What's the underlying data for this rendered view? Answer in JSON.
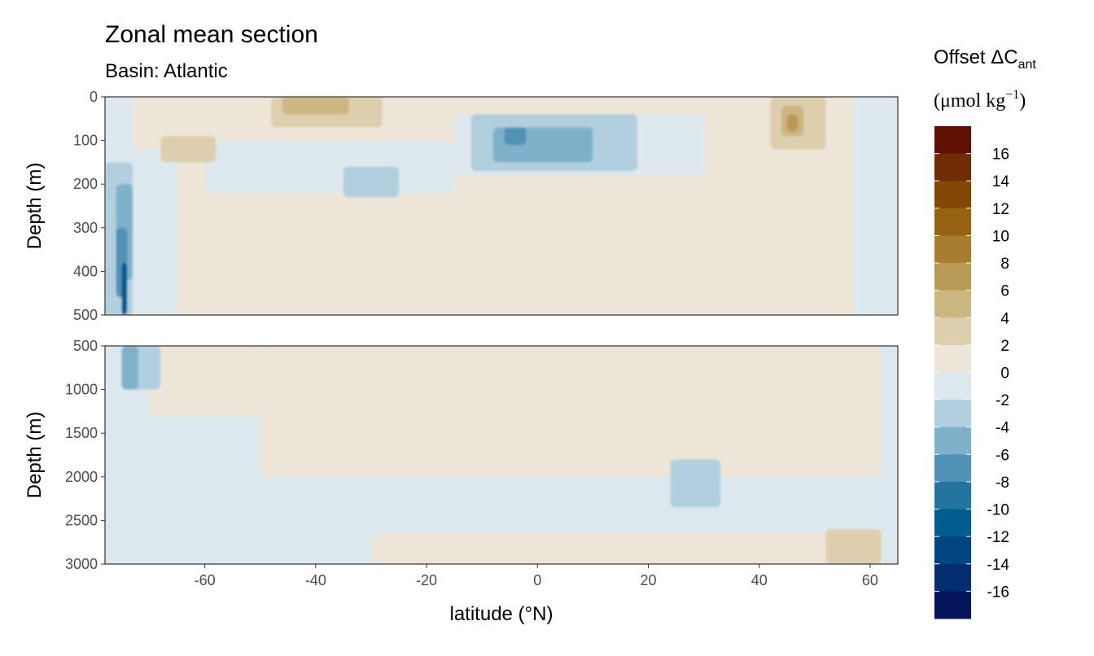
{
  "chart_data": {
    "type": "heatmap",
    "title": "Zonal mean section",
    "subtitle": "Basin: Atlantic",
    "xlabel": "latitude (°N)",
    "ylabel": "Depth (m)",
    "xlim": [
      -78,
      65
    ],
    "x_ticks": [
      -60,
      -40,
      -20,
      0,
      20,
      40,
      60
    ],
    "x_tick_labels": [
      "-60",
      "-40",
      "-20",
      "0",
      "20",
      "40",
      "60"
    ],
    "panels": [
      {
        "name": "upper",
        "ylim": [
          0,
          500
        ],
        "y_ticks": [
          0,
          100,
          200,
          300,
          400,
          500
        ],
        "y_tick_labels": [
          "0",
          "100",
          "200",
          "300",
          "400",
          "500"
        ],
        "background_level": "0 to 2",
        "regions": [
          {
            "level": "-2 to 0",
            "lat": [
              -78,
              -73
            ],
            "depth": [
              0,
              500
            ]
          },
          {
            "level": "-2 to 0",
            "lat": [
              -73,
              -65
            ],
            "depth": [
              120,
              500
            ]
          },
          {
            "level": "-2 to 0",
            "lat": [
              -60,
              -15
            ],
            "depth": [
              100,
              220
            ]
          },
          {
            "level": "-2 to 0",
            "lat": [
              -15,
              30
            ],
            "depth": [
              40,
              180
            ]
          },
          {
            "level": "-2 to 0",
            "lat": [
              57,
              65
            ],
            "depth": [
              0,
              500
            ]
          },
          {
            "level": "-4 to -2",
            "lat": [
              -78,
              -73
            ],
            "depth": [
              150,
              500
            ]
          },
          {
            "level": "-4 to -2",
            "lat": [
              -35,
              -25
            ],
            "depth": [
              160,
              230
            ]
          },
          {
            "level": "-4 to -2",
            "lat": [
              -12,
              18
            ],
            "depth": [
              40,
              170
            ]
          },
          {
            "level": "-6 to -4",
            "lat": [
              -76,
              -73
            ],
            "depth": [
              200,
              420
            ]
          },
          {
            "level": "-6 to -4",
            "lat": [
              -8,
              10
            ],
            "depth": [
              70,
              150
            ]
          },
          {
            "level": "-8 to -6",
            "lat": [
              -76,
              -74
            ],
            "depth": [
              300,
              460
            ]
          },
          {
            "level": "-8 to -6",
            "lat": [
              -6,
              -2
            ],
            "depth": [
              70,
              110
            ]
          },
          {
            "level": "-12 to -10",
            "lat": [
              -75,
              -74
            ],
            "depth": [
              380,
              500
            ]
          },
          {
            "level": "2 to 4",
            "lat": [
              -48,
              -28
            ],
            "depth": [
              0,
              70
            ]
          },
          {
            "level": "2 to 4",
            "lat": [
              -68,
              -58
            ],
            "depth": [
              90,
              150
            ]
          },
          {
            "level": "2 to 4",
            "lat": [
              42,
              52
            ],
            "depth": [
              0,
              120
            ]
          },
          {
            "level": "4 to 6",
            "lat": [
              -46,
              -34
            ],
            "depth": [
              0,
              40
            ]
          },
          {
            "level": "4 to 6",
            "lat": [
              44,
              48
            ],
            "depth": [
              20,
              90
            ]
          },
          {
            "level": "6 to 8",
            "lat": [
              45,
              47
            ],
            "depth": [
              40,
              80
            ]
          }
        ]
      },
      {
        "name": "lower",
        "ylim": [
          500,
          3000
        ],
        "y_ticks": [
          500,
          1000,
          1500,
          2000,
          2500,
          3000
        ],
        "y_tick_labels": [
          "500",
          "1000",
          "1500",
          "2000",
          "2500",
          "3000"
        ],
        "background_level": "-2 to 0",
        "regions": [
          {
            "level": "0 to 2",
            "lat": [
              -70,
              -50
            ],
            "depth": [
              500,
              1300
            ]
          },
          {
            "level": "0 to 2",
            "lat": [
              -50,
              62
            ],
            "depth": [
              500,
              2000
            ]
          },
          {
            "level": "0 to 2",
            "lat": [
              -30,
              62
            ],
            "depth": [
              2650,
              3000
            ]
          },
          {
            "level": "-4 to -2",
            "lat": [
              24,
              33
            ],
            "depth": [
              1800,
              2350
            ]
          },
          {
            "level": "-4 to -2",
            "lat": [
              -74,
              -68
            ],
            "depth": [
              500,
              1000
            ]
          },
          {
            "level": "-6 to -4",
            "lat": [
              -75,
              -72
            ],
            "depth": [
              500,
              1000
            ]
          },
          {
            "level": "2 to 4",
            "lat": [
              52,
              62
            ],
            "depth": [
              2600,
              3000
            ]
          }
        ]
      }
    ],
    "legend": {
      "title_line1": "Offset ΔC",
      "title_subscript": "ant",
      "title_line2": "(μmol kg",
      "title_superscript": "−1",
      "title_close": ")",
      "placement": "right",
      "levels": [
        {
          "range": "16 to 18",
          "color": "#5e1103"
        },
        {
          "range": "14 to 16",
          "color": "#702c04"
        },
        {
          "range": "12 to 14",
          "color": "#834806"
        },
        {
          "range": "10 to 12",
          "color": "#956311"
        },
        {
          "range": "8 to 10",
          "color": "#a77d30"
        },
        {
          "range": "6 to 8",
          "color": "#b99a54"
        },
        {
          "range": "4 to 6",
          "color": "#ccb682"
        },
        {
          "range": "2 to 4",
          "color": "#ddcfad"
        },
        {
          "range": "0 to 2",
          "color": "#ede5d7"
        },
        {
          "range": "-2 to 0",
          "color": "#dde8ee"
        },
        {
          "range": "-4 to -2",
          "color": "#b1cfdf"
        },
        {
          "range": "-6 to -4",
          "color": "#80b1cb"
        },
        {
          "range": "-8 to -6",
          "color": "#5192b6"
        },
        {
          "range": "-10 to -8",
          "color": "#2474a1"
        },
        {
          "range": "-12 to -10",
          "color": "#025d8f"
        },
        {
          "range": "-14 to -12",
          "color": "#014580"
        },
        {
          "range": "-16 to -14",
          "color": "#022d6f"
        },
        {
          "range": "-18 to -16",
          "color": "#04155e"
        }
      ],
      "tick_labels": [
        "16",
        "14",
        "12",
        "10",
        "8",
        "6",
        "4",
        "2",
        "0",
        "-2",
        "-4",
        "-6",
        "-8",
        "-10",
        "-12",
        "-14",
        "-16"
      ]
    }
  }
}
